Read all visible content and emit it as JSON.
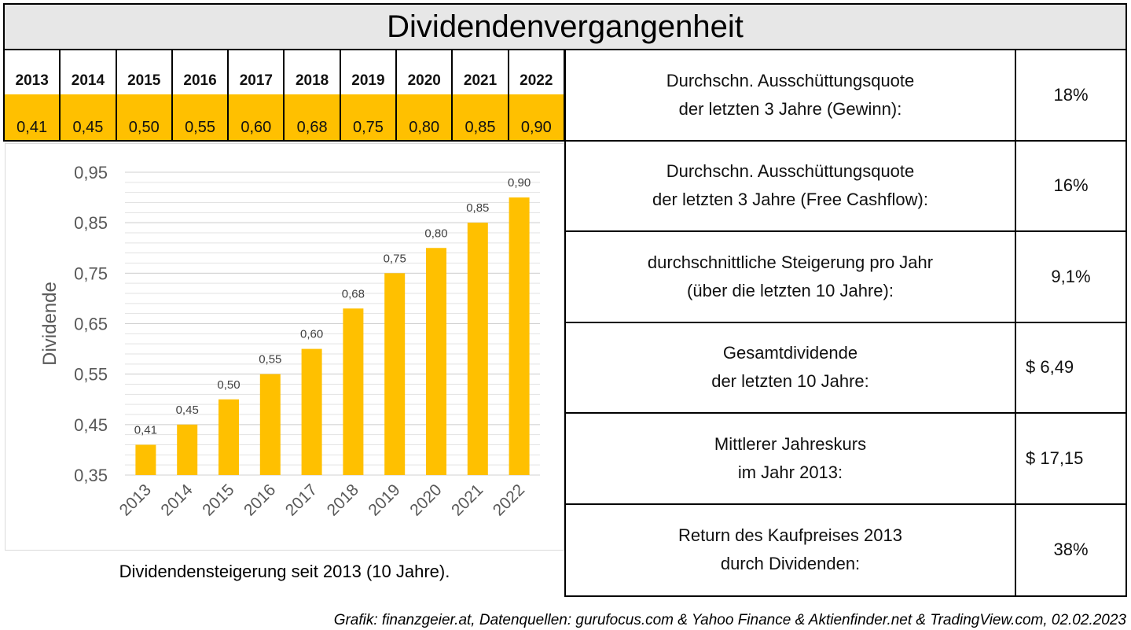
{
  "title": "Dividendenvergangenheit",
  "dividend_table": [
    {
      "year": "2013",
      "value": "0,41"
    },
    {
      "year": "2014",
      "value": "0,45"
    },
    {
      "year": "2015",
      "value": "0,50"
    },
    {
      "year": "2016",
      "value": "0,55"
    },
    {
      "year": "2017",
      "value": "0,60"
    },
    {
      "year": "2018",
      "value": "0,68"
    },
    {
      "year": "2019",
      "value": "0,75"
    },
    {
      "year": "2020",
      "value": "0,80"
    },
    {
      "year": "2021",
      "value": "0,85"
    },
    {
      "year": "2022",
      "value": "0,90"
    }
  ],
  "chart_data": {
    "type": "bar",
    "categories": [
      "2013",
      "2014",
      "2015",
      "2016",
      "2017",
      "2018",
      "2019",
      "2020",
      "2021",
      "2022"
    ],
    "values": [
      0.41,
      0.45,
      0.5,
      0.55,
      0.6,
      0.68,
      0.75,
      0.8,
      0.85,
      0.9
    ],
    "data_labels": [
      "0,41",
      "0,45",
      "0,50",
      "0,55",
      "0,60",
      "0,68",
      "0,75",
      "0,80",
      "0,85",
      "0,90"
    ],
    "title": "",
    "xlabel": "",
    "ylabel": "Dividende",
    "ylim": [
      0.35,
      0.95
    ],
    "y_ticks": [
      0.35,
      0.45,
      0.55,
      0.65,
      0.75,
      0.85,
      0.95
    ],
    "y_tick_labels": [
      "0,35",
      "0,45",
      "0,55",
      "0,65",
      "0,75",
      "0,85",
      "0,95"
    ],
    "minor_grid_step": 0.02,
    "grid": true,
    "legend": false,
    "bar_color": "#ffc000"
  },
  "chart_caption": "Dividendensteigerung seit 2013 (10 Jahre).",
  "metrics": [
    {
      "line1": "Durchschn. Ausschüttungsquote",
      "line2": "der letzten 3 Jahre (Gewinn):",
      "value": "18%"
    },
    {
      "line1": "Durchschn. Ausschüttungsquote",
      "line2": "der letzten 3 Jahre (Free Cashflow):",
      "value": "16%"
    },
    {
      "line1": "durchschnittliche Steigerung pro Jahr",
      "line2": "(über die letzten 10 Jahre):",
      "value": "9,1%"
    },
    {
      "line1": "Gesamtdividende",
      "line2": "der letzten 10 Jahre:",
      "value": "$ 6,49"
    },
    {
      "line1": "Mittlerer Jahreskurs",
      "line2": "im Jahr 2013:",
      "value": "$ 17,15"
    },
    {
      "line1": "Return des Kaufpreises 2013",
      "line2": "durch Dividenden:",
      "value": "38%"
    }
  ],
  "source_note": "Grafik: finanzgeier.at, Datenquellen: gurufocus.com & Yahoo Finance & Aktienfinder.net & TradingView.com, 02.02.2023"
}
